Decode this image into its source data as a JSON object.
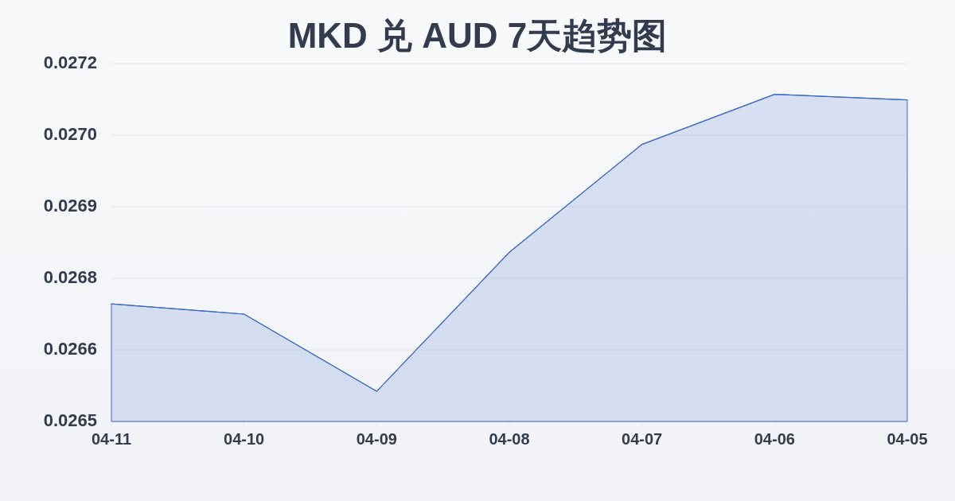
{
  "chart_data": {
    "type": "area",
    "title": "MKD 兑 AUD 7天趋势图",
    "categories": [
      "04-11",
      "04-10",
      "04-09",
      "04-08",
      "04-07",
      "04-06",
      "04-05"
    ],
    "series": [
      {
        "color": "#3b68c9",
        "values": [
          0.026705,
          0.026685,
          0.026534,
          0.026806,
          0.027017,
          0.027115,
          0.027104
        ]
      }
    ],
    "ylim": [
      0.026475,
      0.027175
    ],
    "yticks": [
      {
        "value": 0.026475,
        "label": "0.0265"
      },
      {
        "value": 0.026615,
        "label": "0.0266"
      },
      {
        "value": 0.026755,
        "label": "0.0268"
      },
      {
        "value": 0.026895,
        "label": "0.0269"
      },
      {
        "value": 0.027035,
        "label": "0.0270"
      },
      {
        "value": 0.027175,
        "label": "0.0272"
      }
    ],
    "grid": "y"
  }
}
